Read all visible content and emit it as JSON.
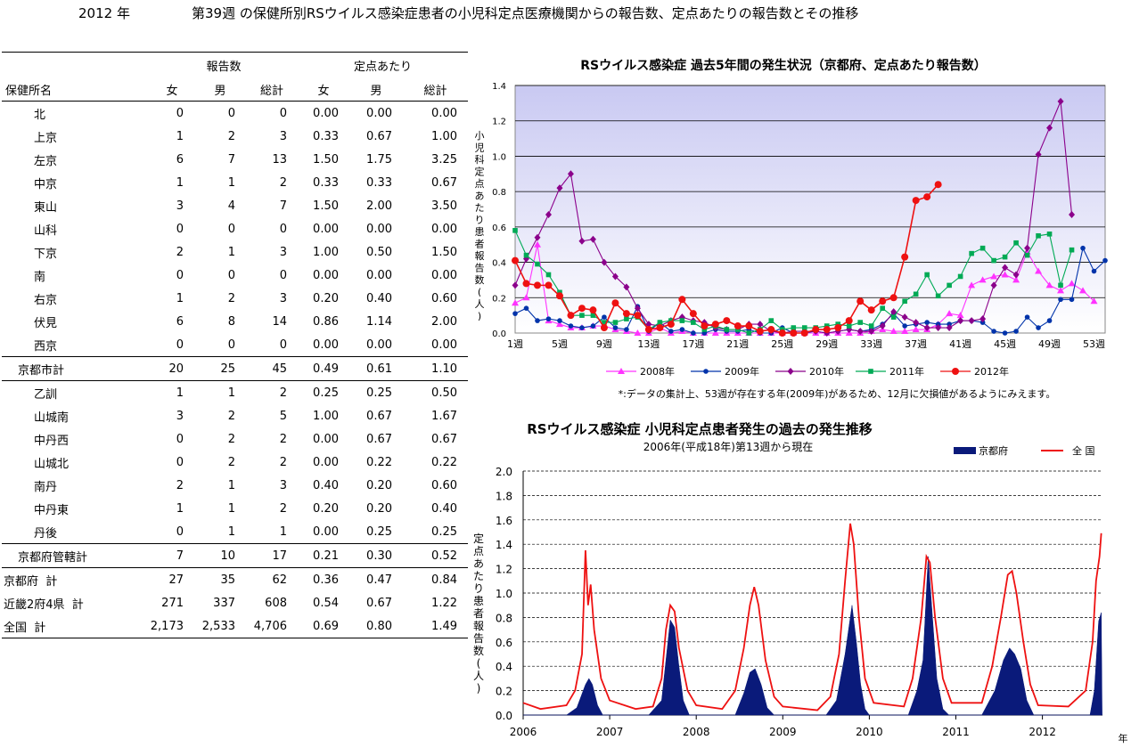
{
  "page_title": {
    "year": "2012 年",
    "text": "第39週 の保健所別RSウイルス感染症患者の小児科定点医療機関からの報告数、定点あたりの報告数とその推移"
  },
  "table": {
    "group_headers": [
      "報告数",
      "定点あたり"
    ],
    "columns": [
      "保健所名",
      "女",
      "男",
      "総計",
      "女",
      "男",
      "総計"
    ],
    "rows": [
      {
        "name": "北",
        "indent": 2,
        "vals": [
          "0",
          "0",
          "0",
          "0.00",
          "0.00",
          "0.00"
        ]
      },
      {
        "name": "上京",
        "indent": 2,
        "vals": [
          "1",
          "2",
          "3",
          "0.33",
          "0.67",
          "1.00"
        ]
      },
      {
        "name": "左京",
        "indent": 2,
        "vals": [
          "6",
          "7",
          "13",
          "1.50",
          "1.75",
          "3.25"
        ]
      },
      {
        "name": "中京",
        "indent": 2,
        "vals": [
          "1",
          "1",
          "2",
          "0.33",
          "0.33",
          "0.67"
        ]
      },
      {
        "name": "東山",
        "indent": 2,
        "vals": [
          "3",
          "4",
          "7",
          "1.50",
          "2.00",
          "3.50"
        ]
      },
      {
        "name": "山科",
        "indent": 2,
        "vals": [
          "0",
          "0",
          "0",
          "0.00",
          "0.00",
          "0.00"
        ]
      },
      {
        "name": "下京",
        "indent": 2,
        "vals": [
          "2",
          "1",
          "3",
          "1.00",
          "0.50",
          "1.50"
        ]
      },
      {
        "name": "南",
        "indent": 2,
        "vals": [
          "0",
          "0",
          "0",
          "0.00",
          "0.00",
          "0.00"
        ]
      },
      {
        "name": "右京",
        "indent": 2,
        "vals": [
          "1",
          "2",
          "3",
          "0.20",
          "0.40",
          "0.60"
        ]
      },
      {
        "name": "伏見",
        "indent": 2,
        "vals": [
          "6",
          "8",
          "14",
          "0.86",
          "1.14",
          "2.00"
        ]
      },
      {
        "name": "西京",
        "indent": 2,
        "vals": [
          "0",
          "0",
          "0",
          "0.00",
          "0.00",
          "0.00"
        ]
      },
      {
        "name": "京都市計",
        "indent": 1,
        "sep": true,
        "vals": [
          "20",
          "25",
          "45",
          "0.49",
          "0.61",
          "1.10"
        ]
      },
      {
        "name": "乙訓",
        "indent": 2,
        "sep": true,
        "vals": [
          "1",
          "1",
          "2",
          "0.25",
          "0.25",
          "0.50"
        ]
      },
      {
        "name": "山城南",
        "indent": 2,
        "vals": [
          "3",
          "2",
          "5",
          "1.00",
          "0.67",
          "1.67"
        ]
      },
      {
        "name": "中丹西",
        "indent": 2,
        "vals": [
          "0",
          "2",
          "2",
          "0.00",
          "0.67",
          "0.67"
        ]
      },
      {
        "name": "山城北",
        "indent": 2,
        "vals": [
          "0",
          "2",
          "2",
          "0.00",
          "0.22",
          "0.22"
        ]
      },
      {
        "name": "南丹",
        "indent": 2,
        "vals": [
          "2",
          "1",
          "3",
          "0.40",
          "0.20",
          "0.60"
        ]
      },
      {
        "name": "中丹東",
        "indent": 2,
        "vals": [
          "1",
          "1",
          "2",
          "0.20",
          "0.20",
          "0.40"
        ]
      },
      {
        "name": "丹後",
        "indent": 2,
        "vals": [
          "0",
          "1",
          "1",
          "0.00",
          "0.25",
          "0.25"
        ]
      },
      {
        "name": "京都府管轄計",
        "indent": 1,
        "sep": true,
        "vals": [
          "7",
          "10",
          "17",
          "0.21",
          "0.30",
          "0.52"
        ]
      },
      {
        "name": "京都府  計",
        "indent": 0,
        "sep": true,
        "vals": [
          "27",
          "35",
          "62",
          "0.36",
          "0.47",
          "0.84"
        ]
      },
      {
        "name": "近畿2府4県  計",
        "indent": 0,
        "vals": [
          "271",
          "337",
          "608",
          "0.54",
          "0.67",
          "1.22"
        ]
      },
      {
        "name": "全国  計",
        "indent": 0,
        "last": true,
        "vals": [
          "2,173",
          "2,533",
          "4,706",
          "0.69",
          "0.80",
          "1.49"
        ]
      }
    ]
  },
  "chart_data": [
    {
      "type": "line",
      "title": "RSウイルス感染症  過去5年間の発生状況（京都府、定点あたり報告数）",
      "ylabel": "小児科定点あたり患者報告数(人)",
      "ylim": [
        0,
        1.4
      ],
      "yticks": [
        "0.0",
        "0.2",
        "0.4",
        "0.6",
        "0.8",
        "1.0",
        "1.2",
        "1.4"
      ],
      "xticks": [
        "1週",
        "5週",
        "9週",
        "13週",
        "17週",
        "21週",
        "25週",
        "29週",
        "33週",
        "37週",
        "41週",
        "45週",
        "49週",
        "53週"
      ],
      "xtick_weeks": [
        1,
        5,
        9,
        13,
        17,
        21,
        25,
        29,
        33,
        37,
        41,
        45,
        49,
        53
      ],
      "grid": true,
      "legend_position": "bottom",
      "note": "*:データの集計上、53週が存在する年(2009年)があるため、12月に欠損値があるようにみえます。",
      "series": [
        {
          "name": "2008年",
          "color": "#ff33ff",
          "marker": "triangle",
          "values": [
            0.17,
            0.2,
            0.5,
            0.07,
            0.05,
            0.03,
            0.03,
            0.04,
            0.04,
            0.02,
            0.01,
            0.0,
            0.0,
            0.03,
            0.0,
            0.01,
            0.0,
            0.0,
            0.0,
            0.0,
            0.0,
            0.0,
            0.0,
            0.0,
            0.0,
            0.0,
            0.0,
            0.0,
            0.0,
            0.0,
            0.0,
            0.0,
            0.01,
            0.02,
            0.01,
            0.01,
            0.02,
            0.02,
            0.05,
            0.11,
            0.1,
            0.27,
            0.3,
            0.32,
            0.33,
            0.3,
            0.46,
            0.35,
            0.27,
            0.24,
            0.28,
            0.24,
            0.18
          ]
        },
        {
          "name": "2009年",
          "color": "#0033aa",
          "marker": "circle",
          "values": [
            0.11,
            0.14,
            0.07,
            0.08,
            0.07,
            0.04,
            0.03,
            0.04,
            0.09,
            0.03,
            0.02,
            0.15,
            0.01,
            0.06,
            0.01,
            0.02,
            0.0,
            0.0,
            0.02,
            0.01,
            0.01,
            0.02,
            0.0,
            0.0,
            0.03,
            0.0,
            0.0,
            0.01,
            0.0,
            0.01,
            0.02,
            0.01,
            0.02,
            0.05,
            0.11,
            0.04,
            0.05,
            0.06,
            0.05,
            0.05,
            0.07,
            0.07,
            0.06,
            0.01,
            0.0,
            0.01,
            0.09,
            0.03,
            0.07,
            0.19,
            0.19,
            0.48,
            0.35,
            0.41
          ]
        },
        {
          "name": "2010年",
          "color": "#8b008b",
          "marker": "diamond",
          "values": [
            0.27,
            0.42,
            0.54,
            0.67,
            0.82,
            0.9,
            0.52,
            0.53,
            0.4,
            0.32,
            0.26,
            0.14,
            0.05,
            0.04,
            0.07,
            0.09,
            0.07,
            0.06,
            0.03,
            0.02,
            0.02,
            0.05,
            0.05,
            0.01,
            0.0,
            0.01,
            0.01,
            0.01,
            0.0,
            0.01,
            0.02,
            0.01,
            0.01,
            0.04,
            0.12,
            0.09,
            0.06,
            0.03,
            0.03,
            0.03,
            0.07,
            0.07,
            0.08,
            0.27,
            0.37,
            0.33,
            0.48,
            1.01,
            1.16,
            1.31,
            0.67
          ]
        },
        {
          "name": "2011年",
          "color": "#00aa55",
          "marker": "square",
          "values": [
            0.58,
            0.44,
            0.39,
            0.33,
            0.23,
            0.1,
            0.1,
            0.1,
            0.06,
            0.06,
            0.08,
            0.09,
            0.02,
            0.06,
            0.07,
            0.07,
            0.06,
            0.02,
            0.04,
            0.02,
            0.02,
            0.0,
            0.02,
            0.07,
            0.02,
            0.03,
            0.03,
            0.03,
            0.04,
            0.05,
            0.04,
            0.06,
            0.04,
            0.14,
            0.09,
            0.18,
            0.22,
            0.33,
            0.21,
            0.27,
            0.32,
            0.45,
            0.48,
            0.41,
            0.43,
            0.51,
            0.44,
            0.55,
            0.56,
            0.27,
            0.47
          ]
        },
        {
          "name": "2012年",
          "color": "#ee1111",
          "marker": "circle",
          "values": [
            0.41,
            0.28,
            0.27,
            0.27,
            0.21,
            0.1,
            0.14,
            0.13,
            0.03,
            0.17,
            0.11,
            0.1,
            0.02,
            0.03,
            0.05,
            0.19,
            0.11,
            0.04,
            0.05,
            0.07,
            0.04,
            0.04,
            0.01,
            0.02,
            0.0,
            0.0,
            0.0,
            0.02,
            0.02,
            0.03,
            0.07,
            0.18,
            0.13,
            0.18,
            0.2,
            0.43,
            0.75,
            0.77,
            0.84
          ]
        }
      ]
    },
    {
      "type": "area",
      "title": "RSウイルス感染症  小児科定点患者発生の過去の発生推移",
      "subtitle": "2006年(平成18年)第13週から現在",
      "ylabel": "定点あたり患者報告数(人)",
      "xlabel": "年",
      "ylim": [
        0,
        2.0
      ],
      "yticks": [
        "0.0",
        "0.2",
        "0.4",
        "0.6",
        "0.8",
        "1.0",
        "1.2",
        "1.4",
        "1.6",
        "1.8",
        "2.0"
      ],
      "xticks": [
        "2006",
        "2007",
        "2008",
        "2009",
        "2010",
        "2011",
        "2012"
      ],
      "grid": true,
      "legend_position": "top-right",
      "series": [
        {
          "name": "京都府",
          "color": "#0a1a7a",
          "style": "area",
          "points": [
            [
              2006.0,
              0.0
            ],
            [
              2006.5,
              0.0
            ],
            [
              2006.62,
              0.06
            ],
            [
              2006.72,
              0.25
            ],
            [
              2006.76,
              0.3
            ],
            [
              2006.8,
              0.25
            ],
            [
              2006.86,
              0.08
            ],
            [
              2006.92,
              0.0
            ],
            [
              2007.45,
              0.0
            ],
            [
              2007.6,
              0.12
            ],
            [
              2007.65,
              0.45
            ],
            [
              2007.7,
              0.78
            ],
            [
              2007.75,
              0.72
            ],
            [
              2007.8,
              0.4
            ],
            [
              2007.85,
              0.12
            ],
            [
              2007.92,
              0.0
            ],
            [
              2008.45,
              0.0
            ],
            [
              2008.55,
              0.18
            ],
            [
              2008.62,
              0.35
            ],
            [
              2008.68,
              0.38
            ],
            [
              2008.75,
              0.25
            ],
            [
              2008.82,
              0.06
            ],
            [
              2008.9,
              0.0
            ],
            [
              2009.5,
              0.0
            ],
            [
              2009.62,
              0.12
            ],
            [
              2009.72,
              0.5
            ],
            [
              2009.8,
              0.9
            ],
            [
              2009.85,
              0.6
            ],
            [
              2009.9,
              0.25
            ],
            [
              2009.95,
              0.05
            ],
            [
              2010.0,
              0.0
            ],
            [
              2010.45,
              0.0
            ],
            [
              2010.55,
              0.2
            ],
            [
              2010.62,
              0.45
            ],
            [
              2010.68,
              1.3
            ],
            [
              2010.72,
              0.9
            ],
            [
              2010.78,
              0.3
            ],
            [
              2010.85,
              0.05
            ],
            [
              2010.92,
              0.0
            ],
            [
              2011.3,
              0.0
            ],
            [
              2011.45,
              0.2
            ],
            [
              2011.55,
              0.45
            ],
            [
              2011.62,
              0.55
            ],
            [
              2011.68,
              0.5
            ],
            [
              2011.75,
              0.38
            ],
            [
              2011.82,
              0.12
            ],
            [
              2011.9,
              0.0
            ],
            [
              2012.55,
              0.0
            ],
            [
              2012.6,
              0.2
            ],
            [
              2012.65,
              0.77
            ],
            [
              2012.68,
              0.84
            ],
            [
              2012.69,
              0.0
            ]
          ]
        },
        {
          "name": "全 国",
          "color": "#ee1111",
          "style": "line",
          "points": [
            [
              2006.0,
              0.1
            ],
            [
              2006.2,
              0.05
            ],
            [
              2006.5,
              0.08
            ],
            [
              2006.6,
              0.2
            ],
            [
              2006.68,
              0.5
            ],
            [
              2006.72,
              1.35
            ],
            [
              2006.75,
              0.9
            ],
            [
              2006.78,
              1.07
            ],
            [
              2006.82,
              0.7
            ],
            [
              2006.9,
              0.3
            ],
            [
              2007.0,
              0.12
            ],
            [
              2007.3,
              0.05
            ],
            [
              2007.5,
              0.07
            ],
            [
              2007.6,
              0.3
            ],
            [
              2007.65,
              0.7
            ],
            [
              2007.7,
              0.9
            ],
            [
              2007.75,
              0.85
            ],
            [
              2007.8,
              0.55
            ],
            [
              2007.9,
              0.2
            ],
            [
              2008.0,
              0.08
            ],
            [
              2008.3,
              0.05
            ],
            [
              2008.45,
              0.2
            ],
            [
              2008.55,
              0.55
            ],
            [
              2008.62,
              0.9
            ],
            [
              2008.67,
              1.05
            ],
            [
              2008.72,
              0.9
            ],
            [
              2008.8,
              0.45
            ],
            [
              2008.9,
              0.15
            ],
            [
              2009.0,
              0.07
            ],
            [
              2009.4,
              0.04
            ],
            [
              2009.55,
              0.15
            ],
            [
              2009.65,
              0.5
            ],
            [
              2009.72,
              1.1
            ],
            [
              2009.78,
              1.57
            ],
            [
              2009.82,
              1.4
            ],
            [
              2009.88,
              0.8
            ],
            [
              2009.95,
              0.3
            ],
            [
              2010.05,
              0.1
            ],
            [
              2010.4,
              0.07
            ],
            [
              2010.5,
              0.3
            ],
            [
              2010.6,
              0.8
            ],
            [
              2010.66,
              1.3
            ],
            [
              2010.7,
              1.25
            ],
            [
              2010.76,
              0.8
            ],
            [
              2010.85,
              0.3
            ],
            [
              2010.95,
              0.1
            ],
            [
              2011.3,
              0.1
            ],
            [
              2011.42,
              0.4
            ],
            [
              2011.52,
              0.8
            ],
            [
              2011.6,
              1.15
            ],
            [
              2011.65,
              1.18
            ],
            [
              2011.7,
              1.0
            ],
            [
              2011.78,
              0.6
            ],
            [
              2011.86,
              0.25
            ],
            [
              2011.95,
              0.08
            ],
            [
              2012.3,
              0.07
            ],
            [
              2012.5,
              0.2
            ],
            [
              2012.58,
              0.6
            ],
            [
              2012.62,
              1.1
            ],
            [
              2012.66,
              1.3
            ],
            [
              2012.68,
              1.49
            ]
          ]
        }
      ]
    }
  ]
}
